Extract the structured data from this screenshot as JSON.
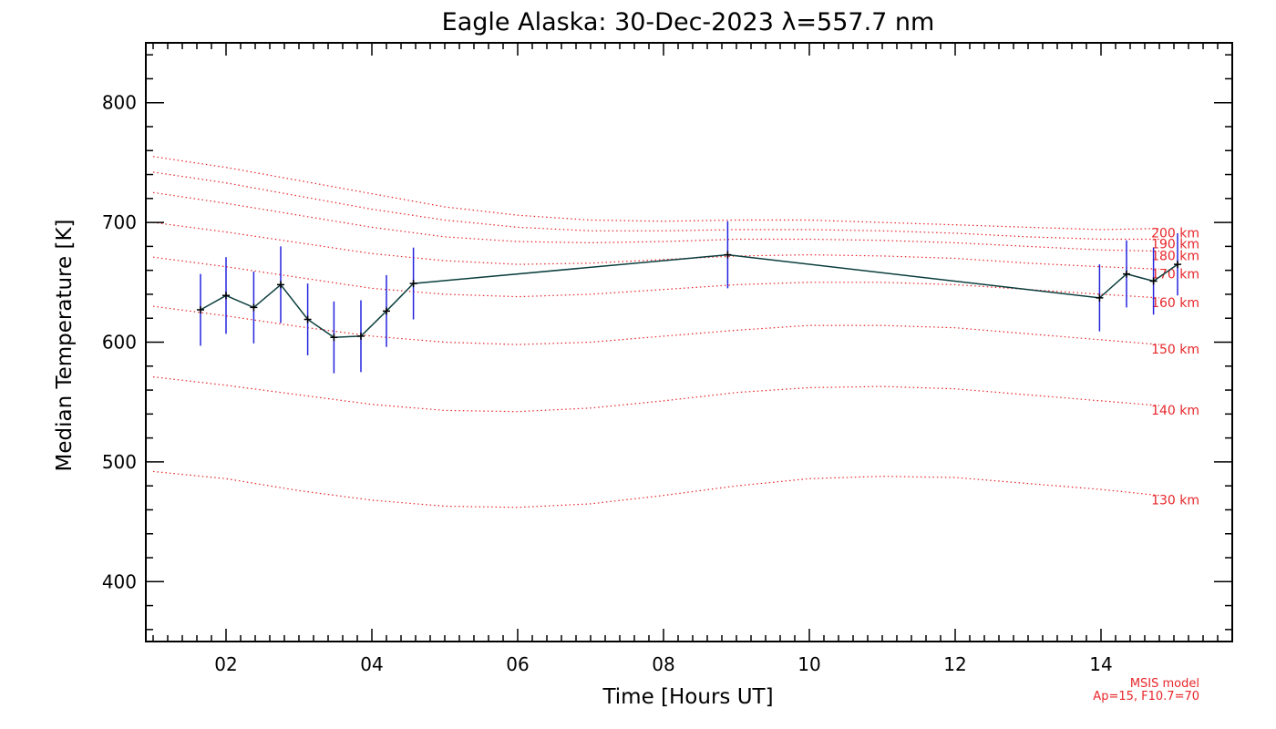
{
  "chart_data": {
    "type": "line",
    "title": "Eagle Alaska: 30-Dec-2023 λ=557.7 nm",
    "xlabel": "Time [Hours UT]",
    "ylabel": "Median Temperature [K]",
    "xlim": [
      0.9,
      15.8
    ],
    "ylim": [
      350,
      850
    ],
    "x_ticks": [
      2,
      4,
      6,
      8,
      10,
      12,
      14
    ],
    "x_tick_labels": [
      "02",
      "04",
      "06",
      "08",
      "10",
      "12",
      "14"
    ],
    "y_ticks": [
      400,
      500,
      600,
      700,
      800
    ],
    "y_tick_labels": [
      "400",
      "500",
      "600",
      "700",
      "800"
    ],
    "grid": false,
    "series": [
      {
        "x": [
          1.65,
          2.0,
          2.38,
          2.75,
          3.12,
          3.48,
          3.85,
          4.2,
          4.57,
          8.88,
          13.98,
          14.35,
          14.72,
          15.05
        ],
        "values": [
          627,
          639,
          629,
          648,
          619,
          604,
          605,
          626,
          649,
          673,
          637,
          657,
          651,
          665
        ],
        "err": [
          30,
          32,
          30,
          32,
          30,
          30,
          30,
          30,
          30,
          28,
          28,
          28,
          28,
          26
        ],
        "line_color": "#0b3d3d",
        "error_color": "#2424e0"
      }
    ],
    "model_curves": [
      {
        "label": "130 km",
        "x": [
          1,
          2,
          3,
          4,
          5,
          6,
          7,
          8,
          9,
          10,
          11,
          12,
          13,
          14,
          14.8
        ],
        "values": [
          492,
          486,
          476,
          468,
          463,
          462,
          465,
          472,
          480,
          486,
          488,
          487,
          482,
          477,
          472
        ]
      },
      {
        "label": "140 km",
        "x": [
          1,
          2,
          3,
          4,
          5,
          6,
          7,
          8,
          9,
          10,
          11,
          12,
          13,
          14,
          14.8
        ],
        "values": [
          571,
          564,
          556,
          548,
          543,
          542,
          545,
          551,
          558,
          562,
          563,
          561,
          556,
          551,
          547
        ]
      },
      {
        "label": "150 km",
        "x": [
          1,
          2,
          3,
          4,
          5,
          6,
          7,
          8,
          9,
          10,
          11,
          12,
          13,
          14,
          14.8
        ],
        "values": [
          630,
          622,
          613,
          605,
          600,
          598,
          600,
          605,
          610,
          614,
          614,
          612,
          607,
          602,
          598
        ]
      },
      {
        "label": "160 km",
        "x": [
          1,
          2,
          3,
          4,
          5,
          6,
          7,
          8,
          9,
          10,
          11,
          12,
          13,
          14,
          14.8
        ],
        "values": [
          671,
          663,
          654,
          645,
          640,
          638,
          640,
          644,
          648,
          650,
          650,
          648,
          644,
          640,
          637
        ]
      },
      {
        "label": "170 km",
        "x": [
          1,
          2,
          3,
          4,
          5,
          6,
          7,
          8,
          9,
          10,
          11,
          12,
          13,
          14,
          14.8
        ],
        "values": [
          700,
          692,
          683,
          674,
          668,
          665,
          666,
          669,
          672,
          673,
          672,
          670,
          666,
          663,
          661
        ]
      },
      {
        "label": "180 km",
        "x": [
          1,
          2,
          3,
          4,
          5,
          6,
          7,
          8,
          9,
          10,
          11,
          12,
          13,
          14,
          14.8
        ],
        "values": [
          725,
          716,
          706,
          696,
          688,
          684,
          683,
          684,
          686,
          686,
          685,
          683,
          680,
          677,
          676
        ]
      },
      {
        "label": "190 km",
        "x": [
          1,
          2,
          3,
          4,
          5,
          6,
          7,
          8,
          9,
          10,
          11,
          12,
          13,
          14,
          14.8
        ],
        "values": [
          742,
          733,
          722,
          711,
          702,
          696,
          693,
          693,
          694,
          694,
          693,
          691,
          688,
          686,
          686
        ]
      },
      {
        "label": "200 km",
        "x": [
          1,
          2,
          3,
          4,
          5,
          6,
          7,
          8,
          9,
          10,
          11,
          12,
          13,
          14,
          14.8
        ],
        "values": [
          755,
          746,
          735,
          724,
          713,
          706,
          702,
          701,
          702,
          702,
          700,
          698,
          696,
          694,
          695
        ]
      }
    ],
    "model_label_color": "#e8262a",
    "model_note_line1": "MSIS model",
    "model_note_line2": "Ap=15, F10.7=70"
  }
}
